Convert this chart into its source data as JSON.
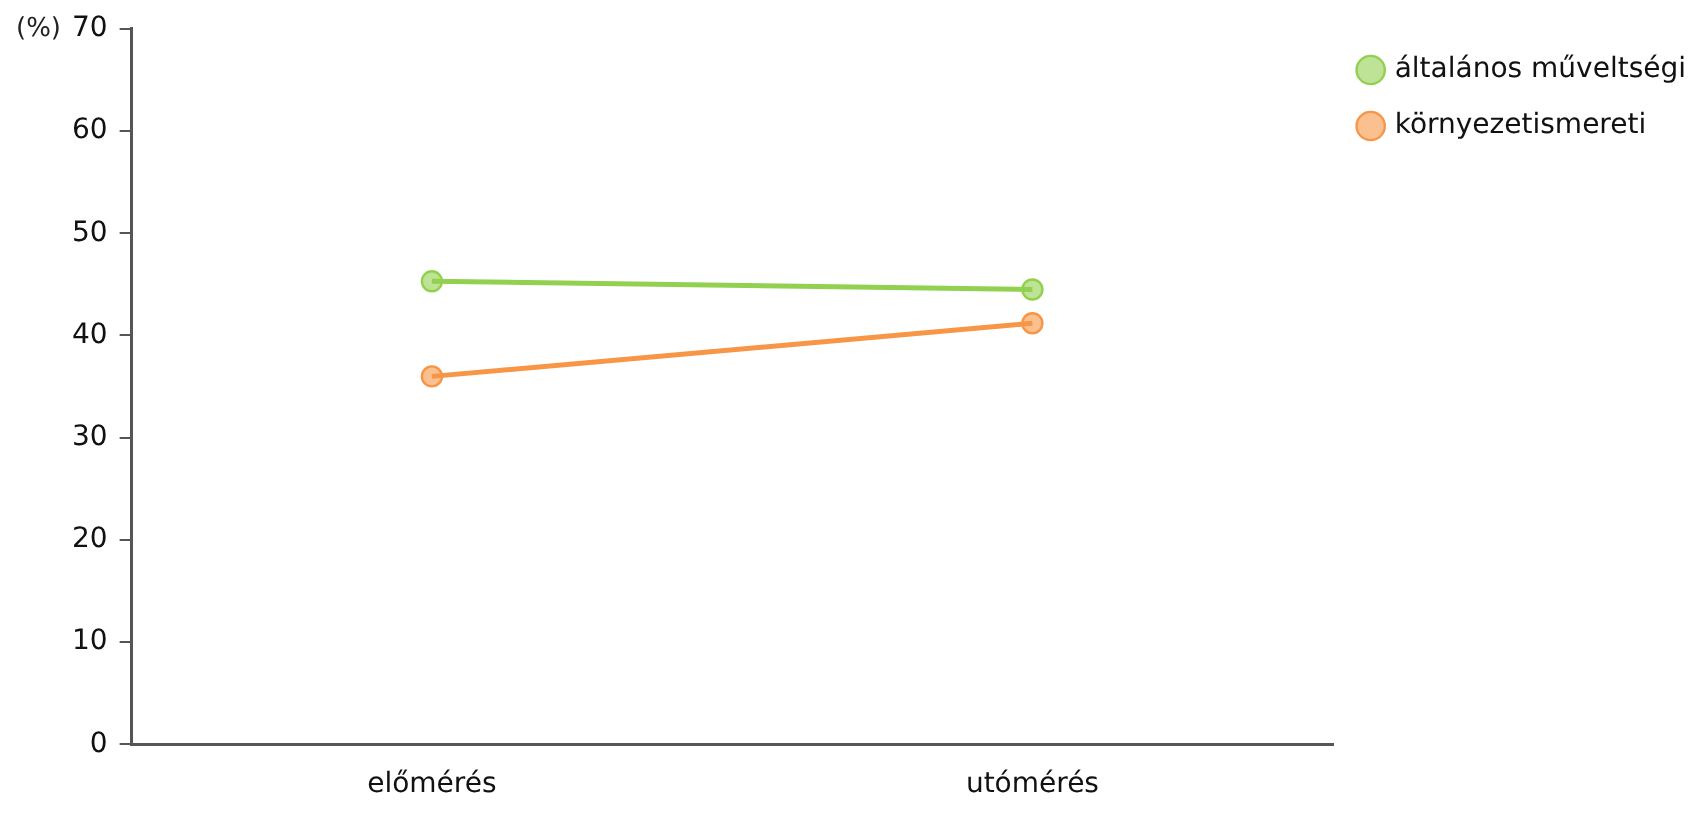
{
  "chart_data": {
    "type": "line",
    "ylabel": "(%)",
    "categories": [
      "előmérés",
      "utómérés"
    ],
    "series": [
      {
        "name": "általános műveltségi",
        "color": "#92d050",
        "values": [
          45.3,
          44.5
        ]
      },
      {
        "name": "környezetismereti",
        "color": "#f79646",
        "values": [
          36.0,
          41.2
        ]
      }
    ],
    "ylim": [
      0,
      70
    ],
    "yticks": [
      0,
      10,
      20,
      30,
      40,
      50,
      60,
      70
    ],
    "grid": false,
    "legend": "top right",
    "marker": "circle",
    "line_style": "solid"
  }
}
